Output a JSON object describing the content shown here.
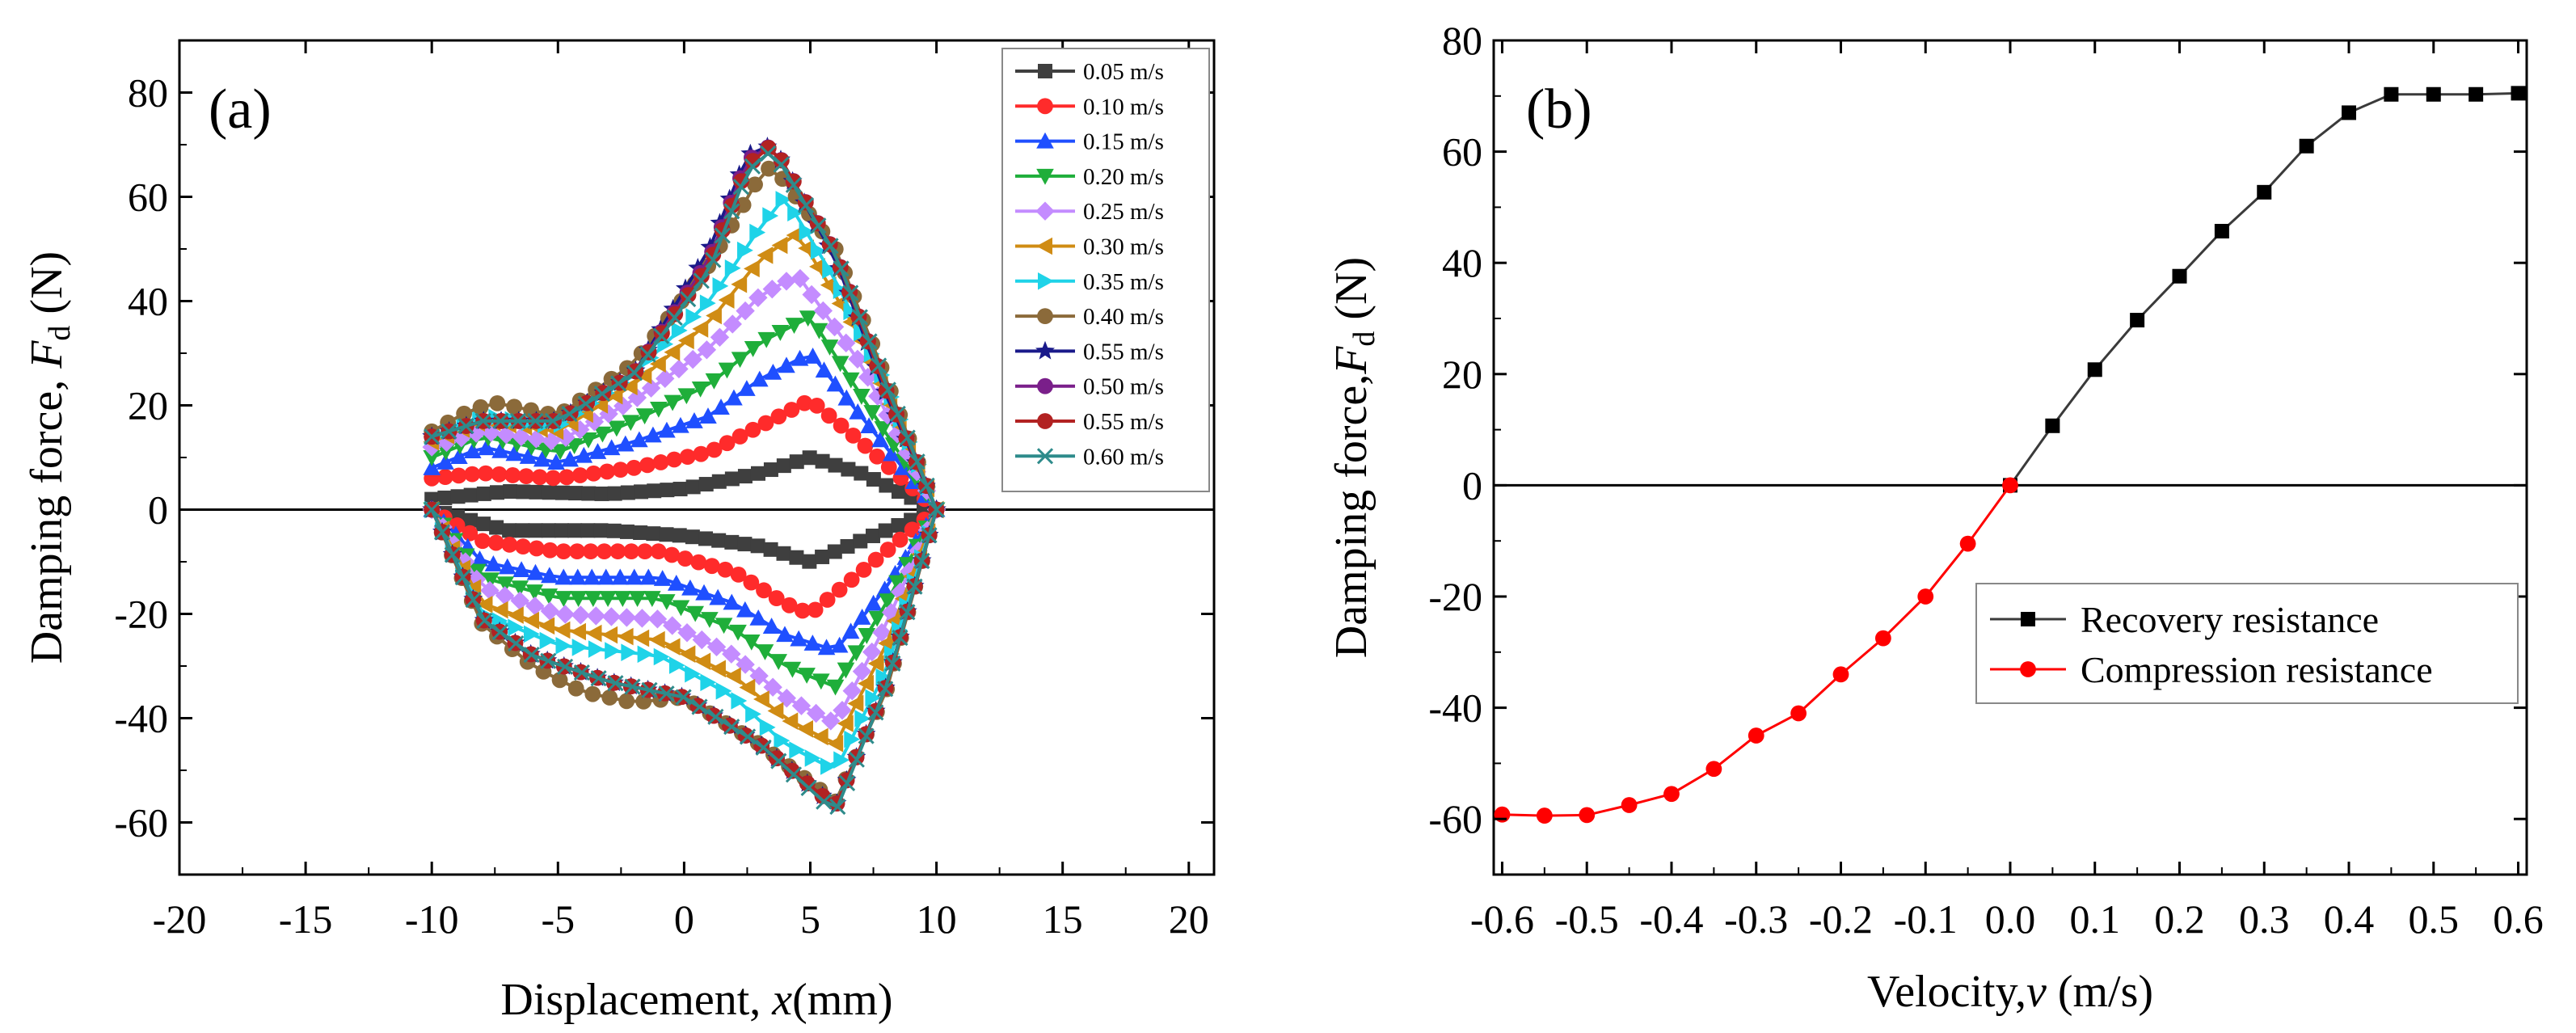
{
  "chart_data": [
    {
      "type": "line",
      "panel_label": "(a)",
      "title": "",
      "xlabel_prefix": "Displacement, ",
      "xlabel_var": "x",
      "xlabel_suffix": "(mm)",
      "ylabel_prefix": "Damping force, ",
      "ylabel_var": "F",
      "ylabel_sub": "d",
      "ylabel_suffix": " (N)",
      "xlim": [
        -20,
        21
      ],
      "ylim": [
        -70,
        90
      ],
      "xticks": [
        -20,
        -15,
        -10,
        -5,
        0,
        5,
        10,
        15,
        20
      ],
      "xtick_labels": [
        "-20",
        "-15",
        "-10",
        "-5",
        "0",
        "5",
        "10",
        "15",
        "20"
      ],
      "yticks": [
        -60,
        -40,
        -20,
        0,
        20,
        40,
        60,
        80
      ],
      "ytick_labels": [
        "-60",
        "-40",
        "-20",
        "0",
        "20",
        "40",
        "60",
        "80"
      ],
      "zero_line": true,
      "legend_position": "top-right",
      "series": [
        {
          "name": "0.05 m/s",
          "color": "#3f3f3f",
          "marker": "square",
          "upper": [
            [
              -10,
              2
            ],
            [
              -7,
              3.5
            ],
            [
              -3,
              3
            ],
            [
              0,
              4
            ],
            [
              3,
              7
            ],
            [
              5,
              10
            ],
            [
              7,
              7
            ],
            [
              10,
              0
            ]
          ],
          "lower": [
            [
              -10,
              0
            ],
            [
              -7,
              -4
            ],
            [
              -3,
              -4
            ],
            [
              0,
              -5
            ],
            [
              3,
              -7
            ],
            [
              5,
              -10
            ],
            [
              7,
              -6
            ],
            [
              10,
              0
            ]
          ]
        },
        {
          "name": "0.10 m/s",
          "color": "#ff2b2b",
          "marker": "circle",
          "upper": [
            [
              -10,
              6
            ],
            [
              -8,
              7
            ],
            [
              -5,
              6
            ],
            [
              -2,
              8
            ],
            [
              1,
              11
            ],
            [
              3,
              16
            ],
            [
              5,
              21
            ],
            [
              7,
              13
            ],
            [
              10,
              0
            ]
          ],
          "lower": [
            [
              -10,
              0
            ],
            [
              -8,
              -6
            ],
            [
              -5,
              -8
            ],
            [
              -1,
              -8
            ],
            [
              2,
              -12
            ],
            [
              4,
              -18
            ],
            [
              5,
              -20
            ],
            [
              7,
              -12
            ],
            [
              10,
              0
            ]
          ]
        },
        {
          "name": "0.15 m/s",
          "color": "#1f4fff",
          "marker": "triangle-up",
          "upper": [
            [
              -10,
              8
            ],
            [
              -8,
              12
            ],
            [
              -5,
              9
            ],
            [
              -2,
              13
            ],
            [
              1,
              18
            ],
            [
              3,
              25
            ],
            [
              5,
              30
            ],
            [
              7,
              18
            ],
            [
              10,
              0
            ]
          ],
          "lower": [
            [
              -10,
              0
            ],
            [
              -8,
              -10
            ],
            [
              -5,
              -13
            ],
            [
              -1,
              -13
            ],
            [
              2,
              -18
            ],
            [
              4,
              -24
            ],
            [
              6,
              -27
            ],
            [
              8,
              -15
            ],
            [
              10,
              0
            ]
          ]
        },
        {
          "name": "0.20 m/s",
          "color": "#1fae3a",
          "marker": "triangle-down",
          "upper": [
            [
              -10,
              10
            ],
            [
              -8,
              14
            ],
            [
              -5,
              11
            ],
            [
              -2,
              17
            ],
            [
              1,
              24
            ],
            [
              3,
              32
            ],
            [
              5,
              37
            ],
            [
              7,
              22
            ],
            [
              10,
              0
            ]
          ],
          "lower": [
            [
              -10,
              0
            ],
            [
              -8,
              -13
            ],
            [
              -5,
              -17
            ],
            [
              -1,
              -17
            ],
            [
              2,
              -23
            ],
            [
              4,
              -30
            ],
            [
              6,
              -34
            ],
            [
              8,
              -18
            ],
            [
              10,
              0
            ]
          ]
        },
        {
          "name": "0.25 m/s",
          "color": "#c48cff",
          "marker": "diamond",
          "upper": [
            [
              -10,
              12
            ],
            [
              -8,
              15
            ],
            [
              -5,
              13
            ],
            [
              -2,
              21
            ],
            [
              1,
              31
            ],
            [
              3,
              41
            ],
            [
              4.5,
              45
            ],
            [
              7,
              28
            ],
            [
              10,
              0
            ]
          ],
          "lower": [
            [
              -10,
              0
            ],
            [
              -8,
              -15
            ],
            [
              -5,
              -20
            ],
            [
              -1,
              -21
            ],
            [
              2,
              -28
            ],
            [
              4,
              -36
            ],
            [
              6,
              -41
            ],
            [
              8,
              -22
            ],
            [
              10,
              0
            ]
          ]
        },
        {
          "name": "0.30 m/s",
          "color": "#d08c14",
          "marker": "triangle-left",
          "upper": [
            [
              -10,
              13
            ],
            [
              -8,
              17
            ],
            [
              -5,
              15
            ],
            [
              -2,
              24
            ],
            [
              1,
              36
            ],
            [
              3,
              48
            ],
            [
              4.5,
              53
            ],
            [
              7,
              33
            ],
            [
              10,
              0
            ]
          ],
          "lower": [
            [
              -10,
              0
            ],
            [
              -8,
              -18
            ],
            [
              -5,
              -23
            ],
            [
              -1,
              -25
            ],
            [
              2,
              -32
            ],
            [
              4,
              -40
            ],
            [
              6,
              -45
            ],
            [
              8,
              -26
            ],
            [
              10,
              0
            ]
          ]
        },
        {
          "name": "0.35 m/s",
          "color": "#1fd3e8",
          "marker": "triangle-right",
          "upper": [
            [
              -10,
              14
            ],
            [
              -8,
              18
            ],
            [
              -5,
              16
            ],
            [
              -2,
              26
            ],
            [
              1,
              40
            ],
            [
              3,
              54
            ],
            [
              4,
              60
            ],
            [
              6,
              44
            ],
            [
              8,
              24
            ],
            [
              10,
              0
            ]
          ],
          "lower": [
            [
              -10,
              0
            ],
            [
              -8,
              -20
            ],
            [
              -5,
              -26
            ],
            [
              -1,
              -28
            ],
            [
              2,
              -36
            ],
            [
              4,
              -45
            ],
            [
              6,
              -50
            ],
            [
              8,
              -31
            ],
            [
              10,
              0
            ]
          ]
        },
        {
          "name": "0.40 m/s",
          "color": "#8b6a3a",
          "marker": "circle",
          "upper": [
            [
              -10,
              15
            ],
            [
              -8.5,
              19
            ],
            [
              -7.5,
              20.5
            ],
            [
              -5,
              18
            ],
            [
              -2,
              28
            ],
            [
              1,
              47
            ],
            [
              3,
              64
            ],
            [
              3.5,
              66
            ],
            [
              6,
              50
            ],
            [
              8,
              25
            ],
            [
              10,
              0
            ]
          ],
          "lower": [
            [
              -10,
              0
            ],
            [
              -8,
              -22
            ],
            [
              -6,
              -30
            ],
            [
              -4,
              -35
            ],
            [
              -2,
              -37
            ],
            [
              0,
              -36
            ],
            [
              3,
              -45
            ],
            [
              6,
              -56
            ],
            [
              8,
              -35
            ],
            [
              10,
              0
            ]
          ]
        },
        {
          "name": "0.55 m/s",
          "color": "#1a1a8a",
          "marker": "star",
          "upper": [
            [
              -10,
              14
            ],
            [
              -8,
              17
            ],
            [
              -5,
              17
            ],
            [
              -2,
              26
            ],
            [
              1,
              50
            ],
            [
              2.5,
              68
            ],
            [
              3.5,
              70
            ],
            [
              6,
              48
            ],
            [
              8,
              22
            ],
            [
              10,
              0
            ]
          ],
          "lower": [
            [
              -10,
              0
            ],
            [
              -8,
              -21
            ],
            [
              -6,
              -28
            ],
            [
              -3,
              -33
            ],
            [
              0,
              -36
            ],
            [
              3,
              -45
            ],
            [
              6,
              -57
            ],
            [
              8,
              -34
            ],
            [
              10,
              0
            ]
          ]
        },
        {
          "name": "0.50 m/s",
          "color": "#7a1f8a",
          "marker": "circle",
          "upper": [
            [
              -10,
              14
            ],
            [
              -8,
              17
            ],
            [
              -5,
              17
            ],
            [
              -2,
              26
            ],
            [
              1,
              48
            ],
            [
              2.5,
              67
            ],
            [
              3.5,
              70
            ],
            [
              6,
              49
            ],
            [
              8,
              23
            ],
            [
              10,
              0
            ]
          ],
          "lower": [
            [
              -10,
              0
            ],
            [
              -8,
              -21
            ],
            [
              -6,
              -28
            ],
            [
              -3,
              -33
            ],
            [
              0,
              -36
            ],
            [
              3,
              -45
            ],
            [
              6,
              -57
            ],
            [
              8,
              -34
            ],
            [
              10,
              0
            ]
          ]
        },
        {
          "name": "0.55 m/s",
          "color": "#b22222",
          "marker": "circle",
          "upper": [
            [
              -10,
              14
            ],
            [
              -8,
              17
            ],
            [
              -5,
              17
            ],
            [
              -2,
              26
            ],
            [
              1,
              47
            ],
            [
              2.5,
              66
            ],
            [
              3.5,
              70
            ],
            [
              6,
              49
            ],
            [
              8,
              23
            ],
            [
              10,
              0
            ]
          ],
          "lower": [
            [
              -10,
              0
            ],
            [
              -8,
              -21
            ],
            [
              -6,
              -28
            ],
            [
              -3,
              -33
            ],
            [
              0,
              -36
            ],
            [
              3,
              -45
            ],
            [
              6,
              -57
            ],
            [
              8,
              -34
            ],
            [
              10,
              0
            ]
          ]
        },
        {
          "name": "0.60 m/s",
          "color": "#2e8b8b",
          "marker": "x",
          "upper": [
            [
              -10,
              14
            ],
            [
              -8,
              17
            ],
            [
              -5,
              17
            ],
            [
              -2,
              26
            ],
            [
              1,
              46
            ],
            [
              2.5,
              65
            ],
            [
              3.5,
              69
            ],
            [
              6,
              49
            ],
            [
              8,
              24
            ],
            [
              10,
              0
            ]
          ],
          "lower": [
            [
              -10,
              0
            ],
            [
              -8,
              -21
            ],
            [
              -6,
              -28
            ],
            [
              -3,
              -33
            ],
            [
              0,
              -36
            ],
            [
              3,
              -45
            ],
            [
              6,
              -58
            ],
            [
              8,
              -34
            ],
            [
              10,
              0
            ]
          ]
        }
      ]
    },
    {
      "type": "line",
      "panel_label": "(b)",
      "title": "",
      "xlabel_prefix": "Velocity,",
      "xlabel_var": "v",
      "xlabel_suffix": " (m/s)",
      "ylabel_prefix": "Damping force,",
      "ylabel_var": "F",
      "ylabel_sub": "d",
      "ylabel_suffix": " (N)",
      "xlim": [
        -0.61,
        0.61
      ],
      "ylim": [
        -70,
        80
      ],
      "xticks": [
        -0.6,
        -0.5,
        -0.4,
        -0.3,
        -0.2,
        -0.1,
        0.0,
        0.1,
        0.2,
        0.3,
        0.4,
        0.5,
        0.6
      ],
      "xtick_labels": [
        "-0.6",
        "-0.5",
        "-0.4",
        "-0.3",
        "-0.2",
        "-0.1",
        "0.0",
        "0.1",
        "0.2",
        "0.3",
        "0.4",
        "0.5",
        "0.6"
      ],
      "yticks": [
        -60,
        -40,
        -20,
        0,
        20,
        40,
        60,
        80
      ],
      "ytick_labels": [
        "-60",
        "-40",
        "-20",
        "0",
        "20",
        "40",
        "60",
        "80"
      ],
      "zero_line": true,
      "legend_position": "lower-right",
      "series": [
        {
          "name": "Recovery resistance",
          "color": "#000000",
          "line_color": "#3a3a3a",
          "marker": "square",
          "x": [
            0.0,
            0.05,
            0.1,
            0.15,
            0.2,
            0.25,
            0.3,
            0.35,
            0.4,
            0.45,
            0.5,
            0.55,
            0.6
          ],
          "y": [
            0,
            10.7,
            20.8,
            29.7,
            37.6,
            45.7,
            52.7,
            61.0,
            67.0,
            70.3,
            70.3,
            70.3,
            70.5
          ]
        },
        {
          "name": "Compression resistance",
          "color": "#ff0000",
          "line_color": "#ff0000",
          "marker": "circle",
          "x": [
            -0.6,
            -0.55,
            -0.5,
            -0.45,
            -0.4,
            -0.35,
            -0.3,
            -0.25,
            -0.2,
            -0.15,
            -0.1,
            -0.05,
            0.0
          ],
          "y": [
            -59.2,
            -59.4,
            -59.3,
            -57.5,
            -55.5,
            -51.0,
            -45.0,
            -41.0,
            -34.0,
            -27.5,
            -20.0,
            -10.5,
            0
          ]
        }
      ]
    }
  ]
}
